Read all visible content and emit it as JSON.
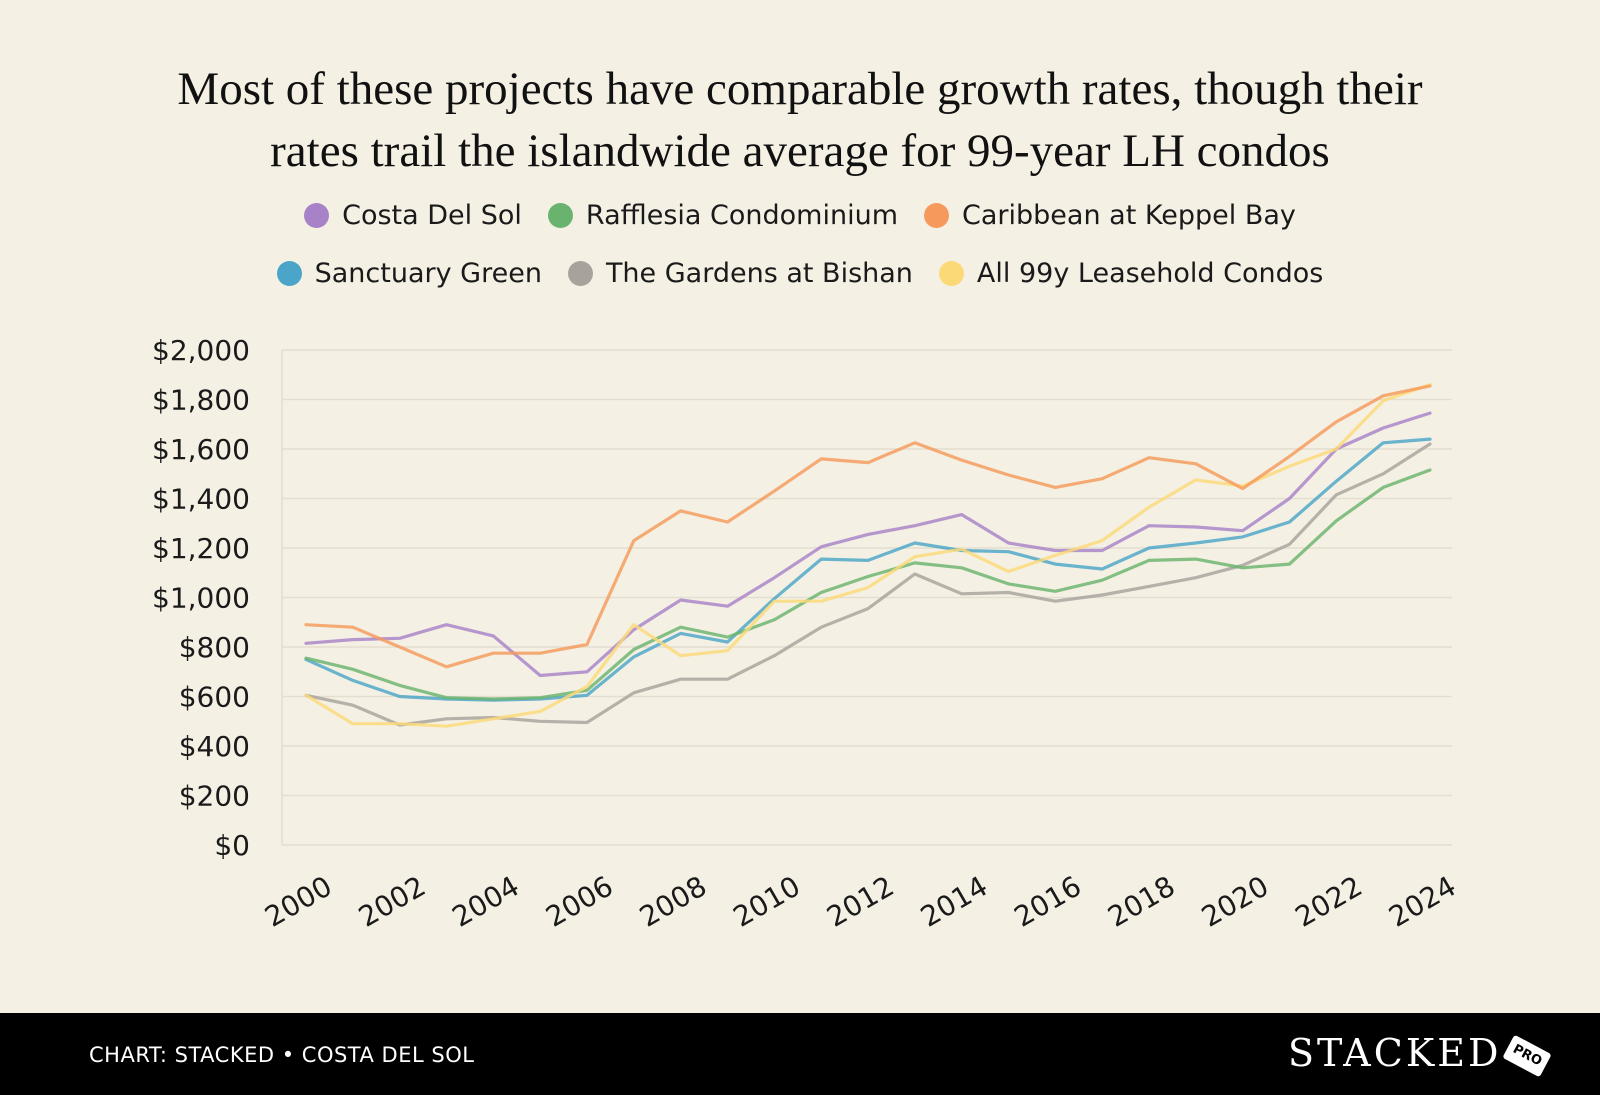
{
  "title_lines": [
    "Most of these projects have comparable growth rates, though their",
    "rates trail the islandwide average for 99-year LH condos"
  ],
  "footer": {
    "credit": "CHART: STACKED • COSTA DEL SOL",
    "logo": "STACKED",
    "badge": "PRO"
  },
  "chart_data": {
    "type": "line",
    "title": "Most of these projects have comparable growth rates, though their rates trail the islandwide average for 99-year LH condos",
    "xlabel": "",
    "ylabel": "",
    "x": [
      2000,
      2001,
      2002,
      2003,
      2004,
      2005,
      2006,
      2007,
      2008,
      2009,
      2010,
      2011,
      2012,
      2013,
      2014,
      2015,
      2016,
      2017,
      2018,
      2019,
      2020,
      2021,
      2022,
      2023,
      2024
    ],
    "x_tick_labels": [
      "2000",
      "2002",
      "2004",
      "2006",
      "2008",
      "2010",
      "2012",
      "2014",
      "2016",
      "2018",
      "2020",
      "2022",
      "2024"
    ],
    "x_ticks": [
      2000,
      2002,
      2004,
      2006,
      2008,
      2010,
      2012,
      2014,
      2016,
      2018,
      2020,
      2022,
      2024
    ],
    "ylim": [
      0,
      2000
    ],
    "y_ticks": [
      0,
      200,
      400,
      600,
      800,
      1000,
      1200,
      1400,
      1600,
      1800,
      2000
    ],
    "y_tick_labels": [
      "$0",
      "$200",
      "$400",
      "$600",
      "$800",
      "$1,000",
      "$1,200",
      "$1,400",
      "$1,600",
      "$1,800",
      "$2,000"
    ],
    "grid": true,
    "legend_position": "top",
    "series": [
      {
        "name": "Costa Del Sol",
        "color": "#a882c8",
        "values": [
          815,
          830,
          835,
          890,
          845,
          685,
          700,
          870,
          990,
          965,
          1080,
          1205,
          1255,
          1290,
          1335,
          1220,
          1190,
          1190,
          1290,
          1285,
          1270,
          1400,
          1600,
          1685,
          1745
        ]
      },
      {
        "name": "Rafflesia Condominium",
        "color": "#6ab36e",
        "values": [
          755,
          710,
          645,
          595,
          590,
          595,
          625,
          790,
          880,
          840,
          910,
          1020,
          1085,
          1140,
          1120,
          1055,
          1025,
          1070,
          1150,
          1155,
          1120,
          1135,
          1310,
          1445,
          1515
        ]
      },
      {
        "name": "Caribbean at Keppel Bay",
        "color": "#f59a5c",
        "values": [
          890,
          880,
          800,
          720,
          775,
          775,
          810,
          1230,
          1350,
          1305,
          1430,
          1560,
          1545,
          1625,
          1555,
          1495,
          1445,
          1480,
          1565,
          1540,
          1440,
          1570,
          1710,
          1815,
          1855
        ]
      },
      {
        "name": "Sanctuary Green",
        "color": "#4aa5c8",
        "values": [
          750,
          665,
          600,
          590,
          585,
          590,
          605,
          760,
          855,
          820,
          995,
          1155,
          1150,
          1220,
          1190,
          1185,
          1135,
          1115,
          1200,
          1220,
          1245,
          1305,
          1470,
          1625,
          1640
        ]
      },
      {
        "name": "The Gardens at Bishan",
        "color": "#a7a29c",
        "values": [
          605,
          565,
          485,
          510,
          515,
          500,
          495,
          615,
          670,
          670,
          765,
          880,
          955,
          1095,
          1015,
          1020,
          985,
          1010,
          1045,
          1080,
          1130,
          1215,
          1415,
          1500,
          1620
        ]
      },
      {
        "name": "All 99y Leasehold Condos",
        "color": "#fcd977",
        "values": [
          605,
          490,
          490,
          480,
          510,
          540,
          640,
          890,
          765,
          785,
          985,
          985,
          1040,
          1165,
          1195,
          1105,
          1170,
          1230,
          1365,
          1475,
          1450,
          1530,
          1600,
          1795,
          1860
        ]
      }
    ]
  }
}
